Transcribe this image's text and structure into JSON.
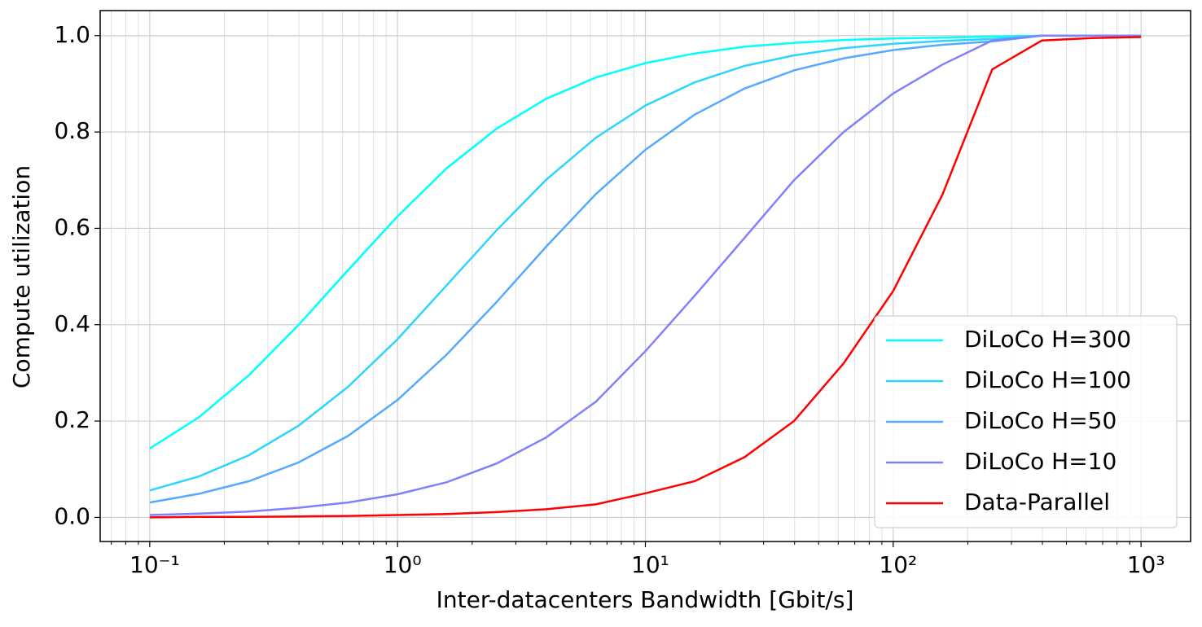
{
  "chart_data": {
    "type": "line",
    "xlabel": "Inter-datacenters Bandwidth [Gbit/s]",
    "ylabel": "Compute utilization",
    "log_x": true,
    "grid": true,
    "minor_grid": true,
    "legend": "lower right",
    "x": [
      0.1,
      0.158,
      0.251,
      0.398,
      0.631,
      1,
      1.58,
      2.51,
      3.98,
      6.31,
      10,
      15.8,
      25.1,
      39.8,
      63.1,
      100,
      158,
      251,
      398,
      631,
      1000
    ],
    "series": [
      {
        "name": "DiLoCo H=300",
        "color": "#00ffff",
        "values": [
          0.143,
          0.208,
          0.295,
          0.399,
          0.513,
          0.625,
          0.725,
          0.807,
          0.869,
          0.913,
          0.943,
          0.963,
          0.977,
          0.985,
          0.991,
          0.994,
          0.996,
          0.998,
          1.0,
          1.0,
          1.0
        ]
      },
      {
        "name": "DiLoCo H=100",
        "color": "#2ad5ff",
        "values": [
          0.056,
          0.085,
          0.129,
          0.19,
          0.271,
          0.37,
          0.482,
          0.596,
          0.701,
          0.788,
          0.855,
          0.903,
          0.937,
          0.959,
          0.974,
          0.983,
          0.989,
          0.993,
          1.0,
          1.0,
          1.0
        ]
      },
      {
        "name": "DiLoCo H=50",
        "color": "#55aaff",
        "values": [
          0.031,
          0.049,
          0.075,
          0.114,
          0.169,
          0.244,
          0.338,
          0.447,
          0.562,
          0.671,
          0.763,
          0.836,
          0.89,
          0.928,
          0.953,
          0.97,
          0.981,
          0.988,
          1.0,
          1.0,
          1.0
        ]
      },
      {
        "name": "DiLoCo H=10",
        "color": "#8080ff",
        "values": [
          0.005,
          0.008,
          0.012,
          0.02,
          0.031,
          0.048,
          0.073,
          0.112,
          0.166,
          0.24,
          0.345,
          0.46,
          0.58,
          0.7,
          0.8,
          0.88,
          0.94,
          0.99,
          1.0,
          1.0,
          1.0
        ]
      },
      {
        "name": "Data-Parallel",
        "color": "#ff0000",
        "values": [
          0.0,
          0.001,
          0.001,
          0.002,
          0.003,
          0.005,
          0.007,
          0.011,
          0.017,
          0.027,
          0.05,
          0.075,
          0.125,
          0.2,
          0.32,
          0.47,
          0.67,
          0.93,
          0.99,
          0.995,
          0.997
        ]
      }
    ],
    "xlim": [
      0.0631,
      1585
    ],
    "ylim": [
      -0.05,
      1.052
    ],
    "xticks": [
      {
        "value": 0.1,
        "label": "10⁻¹"
      },
      {
        "value": 1,
        "label": "10⁰"
      },
      {
        "value": 10,
        "label": "10¹"
      },
      {
        "value": 100,
        "label": "10²"
      },
      {
        "value": 1000,
        "label": "10³"
      }
    ],
    "yticks": [
      {
        "value": 0,
        "label": "0.0"
      },
      {
        "value": 0.2,
        "label": "0.2"
      },
      {
        "value": 0.4,
        "label": "0.4"
      },
      {
        "value": 0.6,
        "label": "0.6"
      },
      {
        "value": 0.8,
        "label": "0.8"
      },
      {
        "value": 1,
        "label": "1.0"
      }
    ]
  }
}
